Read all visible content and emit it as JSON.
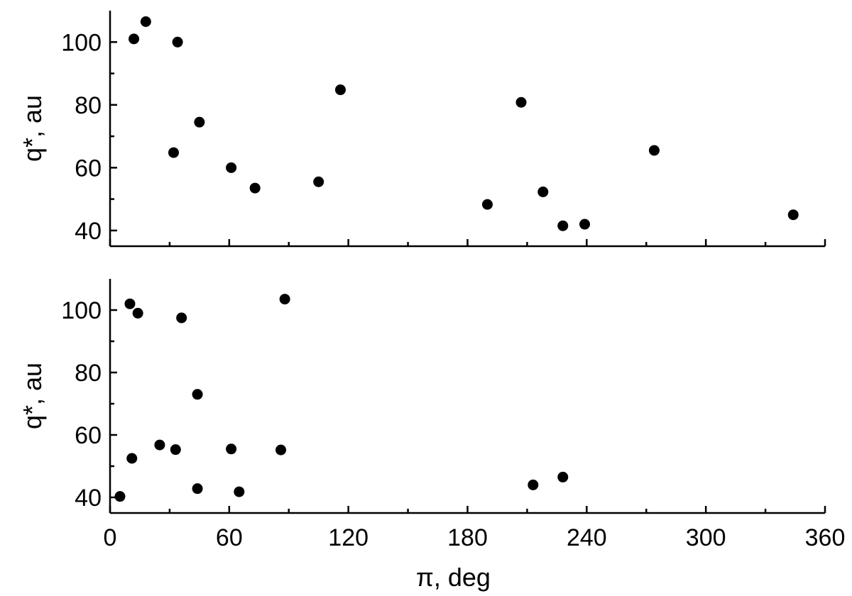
{
  "chart_data": [
    {
      "type": "scatter",
      "xlabel": "",
      "ylabel": "q*, au",
      "xlim": [
        0,
        360
      ],
      "ylim": [
        35,
        110
      ],
      "x_ticks": [
        0,
        60,
        120,
        180,
        240,
        300,
        360
      ],
      "x_minor_ticks": [
        30,
        90,
        150,
        210,
        270,
        330
      ],
      "x_tick_labels_shown": false,
      "y_ticks": [
        40,
        60,
        80,
        100
      ],
      "y_tick_labels": [
        "40",
        "60",
        "80",
        "100"
      ],
      "y_minor_ticks": [
        50,
        70,
        90
      ],
      "grid": false,
      "marker_color": "#000000",
      "points": [
        {
          "x": 12,
          "y": 101
        },
        {
          "x": 18,
          "y": 106.5
        },
        {
          "x": 34,
          "y": 100
        },
        {
          "x": 32,
          "y": 64.8
        },
        {
          "x": 45,
          "y": 74.5
        },
        {
          "x": 61,
          "y": 60
        },
        {
          "x": 73,
          "y": 53.5
        },
        {
          "x": 105,
          "y": 55.5
        },
        {
          "x": 116,
          "y": 84.8
        },
        {
          "x": 190,
          "y": 48.3
        },
        {
          "x": 207,
          "y": 80.8
        },
        {
          "x": 218,
          "y": 52.3
        },
        {
          "x": 228,
          "y": 41.5
        },
        {
          "x": 239,
          "y": 42
        },
        {
          "x": 274,
          "y": 65.5
        },
        {
          "x": 344,
          "y": 45
        }
      ]
    },
    {
      "type": "scatter",
      "xlabel": "π, deg",
      "ylabel": "q*, au",
      "xlim": [
        0,
        360
      ],
      "ylim": [
        35,
        110
      ],
      "x_ticks": [
        0,
        60,
        120,
        180,
        240,
        300,
        360
      ],
      "x_tick_labels": [
        "0",
        "60",
        "120",
        "180",
        "240",
        "300",
        "360"
      ],
      "x_minor_ticks": [
        30,
        90,
        150,
        210,
        270,
        330
      ],
      "y_ticks": [
        40,
        60,
        80,
        100
      ],
      "y_tick_labels": [
        "40",
        "60",
        "80",
        "100"
      ],
      "y_minor_ticks": [
        50,
        70,
        90
      ],
      "grid": false,
      "marker_color": "#000000",
      "points": [
        {
          "x": 5,
          "y": 40.3
        },
        {
          "x": 10,
          "y": 102
        },
        {
          "x": 11,
          "y": 52.5
        },
        {
          "x": 14,
          "y": 99
        },
        {
          "x": 25,
          "y": 56.8
        },
        {
          "x": 33,
          "y": 55.3
        },
        {
          "x": 36,
          "y": 97.5
        },
        {
          "x": 44,
          "y": 73
        },
        {
          "x": 44,
          "y": 42.8
        },
        {
          "x": 61,
          "y": 55.5
        },
        {
          "x": 65,
          "y": 41.8
        },
        {
          "x": 86,
          "y": 55.2
        },
        {
          "x": 88,
          "y": 103.5
        },
        {
          "x": 213,
          "y": 44
        },
        {
          "x": 228,
          "y": 46.5
        }
      ]
    }
  ]
}
